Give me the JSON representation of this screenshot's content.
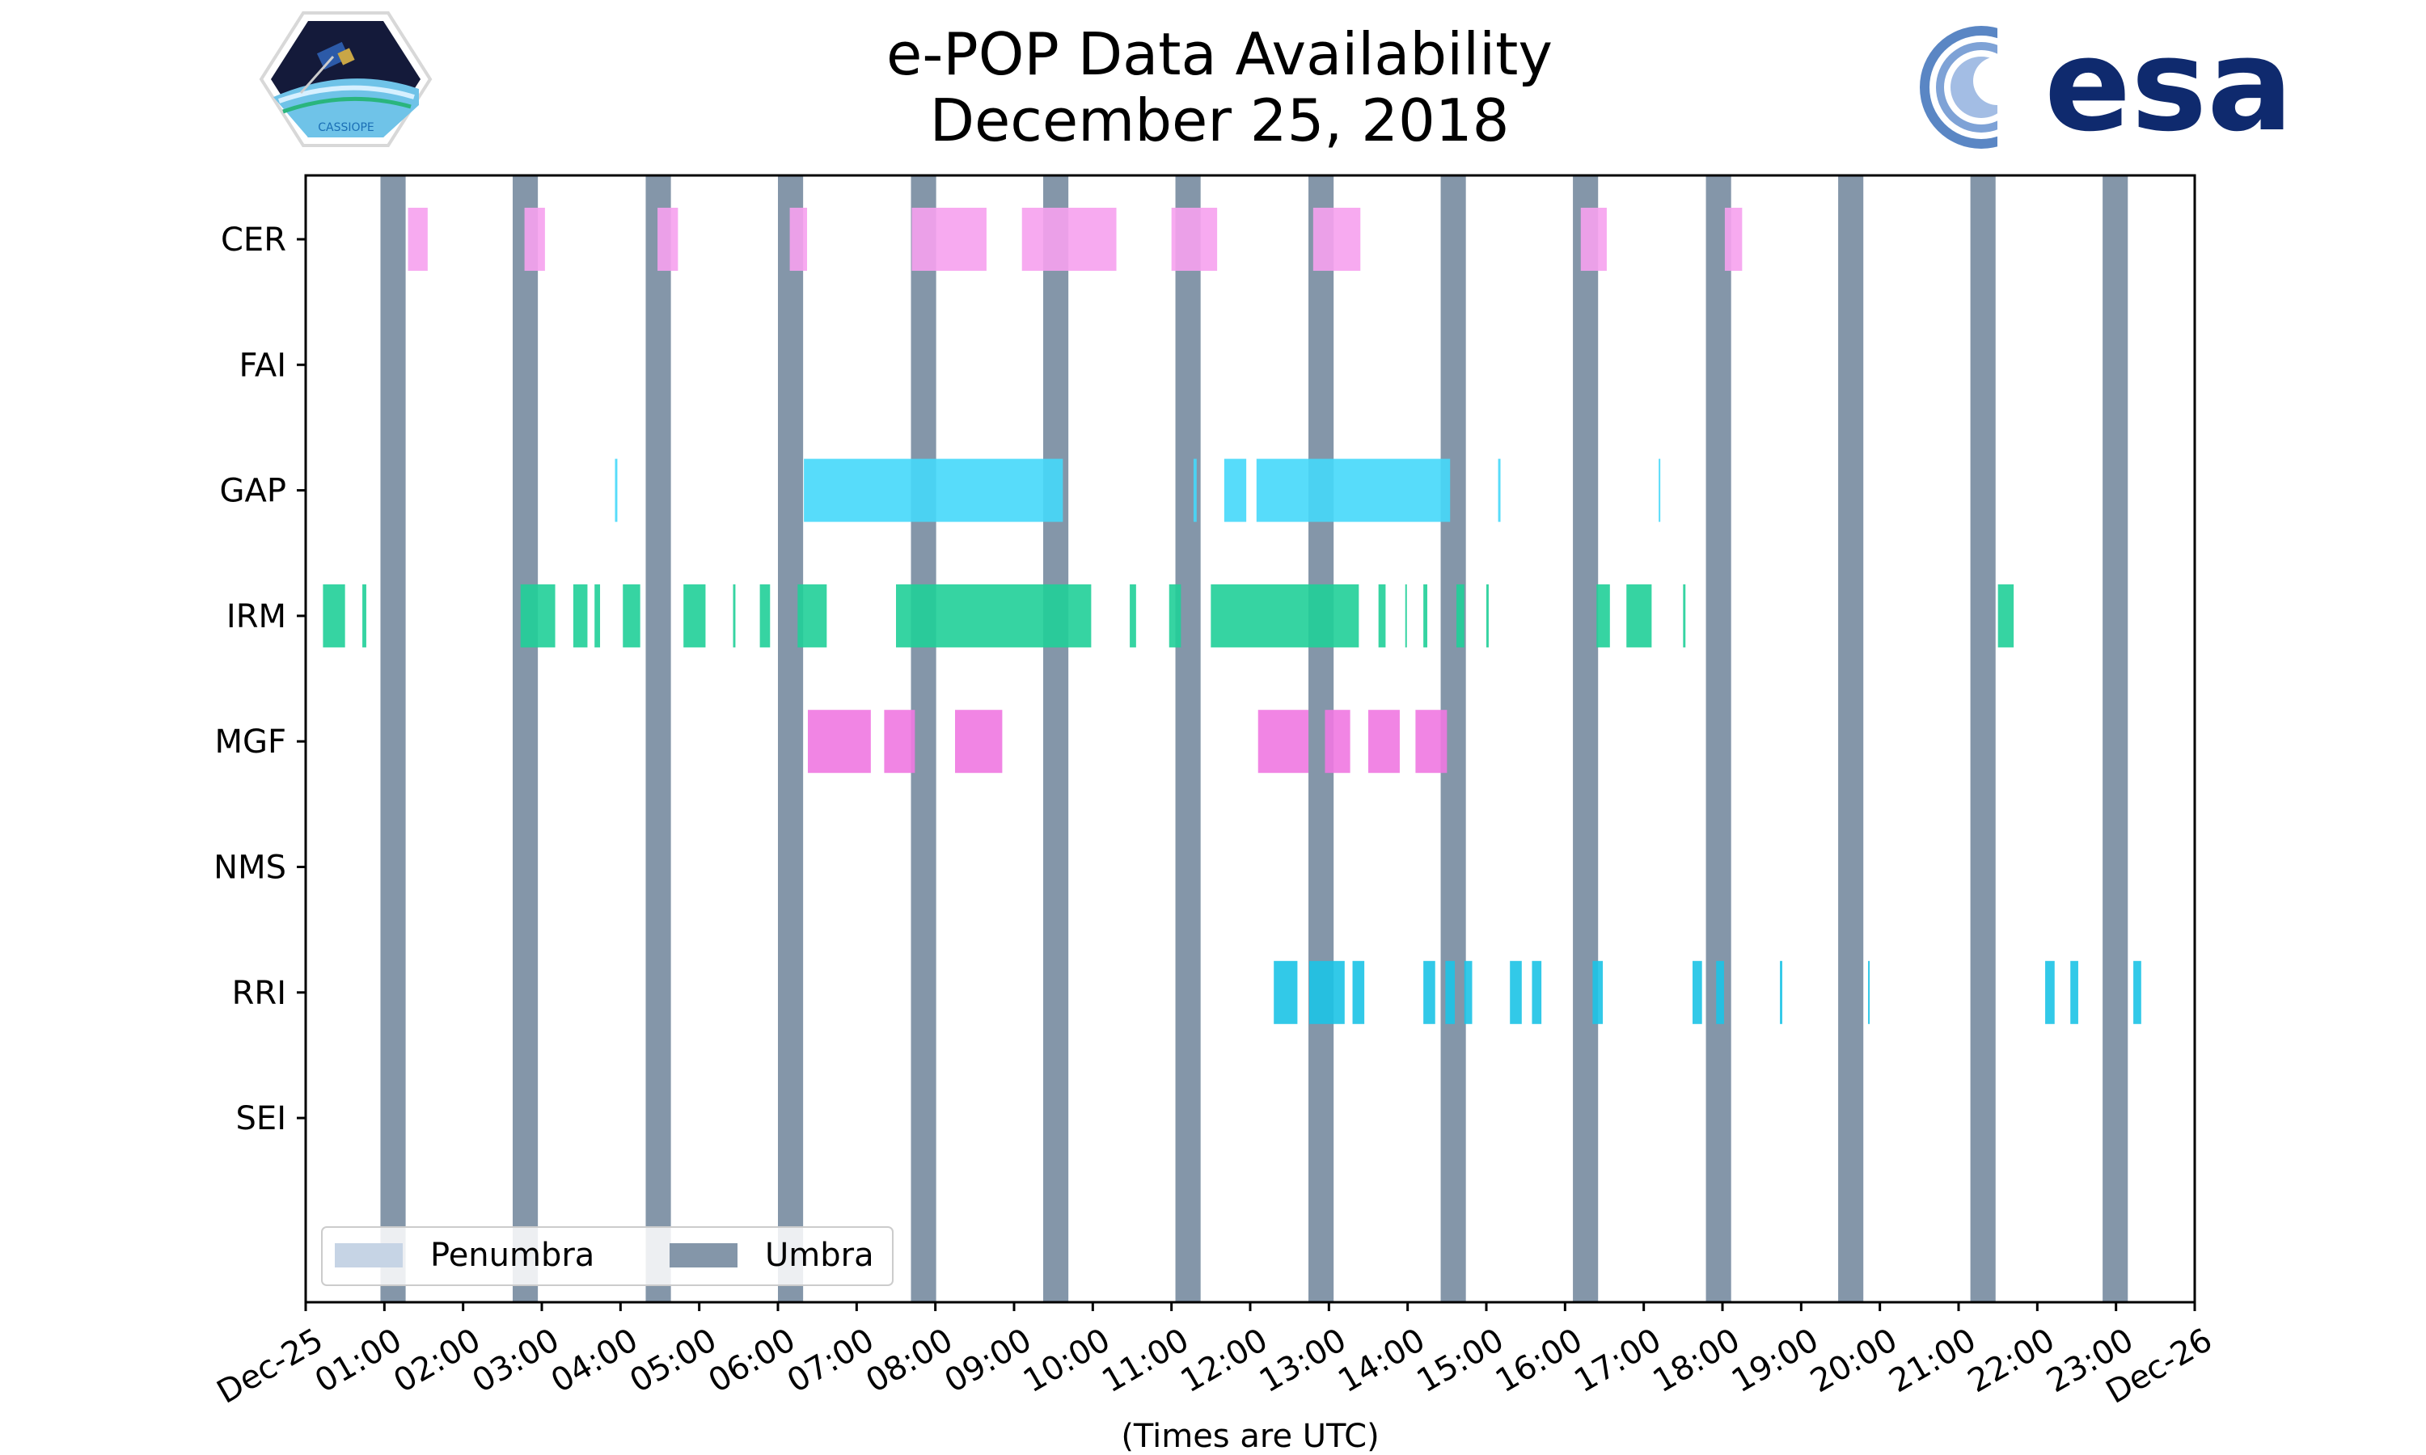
{
  "chart_data": {
    "type": "timeline",
    "title": [
      "e-POP Data Availability",
      "December 25, 2018"
    ],
    "xlabel": "(Times are UTC)",
    "xlim_hours": [
      0,
      24
    ],
    "instruments": [
      "CER",
      "FAI",
      "GAP",
      "IRM",
      "MGF",
      "NMS",
      "RRI",
      "SEI"
    ],
    "xtick_hours": [
      0,
      1,
      2,
      3,
      4,
      5,
      6,
      7,
      8,
      9,
      10,
      11,
      12,
      13,
      14,
      15,
      16,
      17,
      18,
      19,
      20,
      21,
      22,
      23,
      24
    ],
    "xtick_labels": [
      "Dec-25",
      "01:00",
      "02:00",
      "03:00",
      "04:00",
      "05:00",
      "06:00",
      "07:00",
      "08:00",
      "09:00",
      "10:00",
      "11:00",
      "12:00",
      "13:00",
      "14:00",
      "15:00",
      "16:00",
      "17:00",
      "18:00",
      "19:00",
      "20:00",
      "21:00",
      "22:00",
      "23:00",
      "Dec-26"
    ],
    "legend": [
      {
        "label": "Penumbra",
        "color": "#c6d4e5"
      },
      {
        "label": "Umbra",
        "color": "#8496a9"
      }
    ],
    "legend_position": "lower-left",
    "umbra_hours": [
      [
        0.95,
        1.27
      ],
      [
        2.63,
        2.95
      ],
      [
        4.32,
        4.64
      ],
      [
        6.0,
        6.32
      ],
      [
        7.69,
        8.01
      ],
      [
        9.37,
        9.69
      ],
      [
        11.05,
        11.37
      ],
      [
        12.74,
        13.06
      ],
      [
        14.42,
        14.74
      ],
      [
        16.1,
        16.42
      ],
      [
        17.79,
        18.11
      ],
      [
        19.47,
        19.79
      ],
      [
        21.15,
        21.47
      ],
      [
        22.83,
        23.15
      ]
    ],
    "series": [
      {
        "name": "CER",
        "color": "#f6a1ee",
        "intervals": [
          [
            1.3,
            1.55
          ],
          [
            2.78,
            3.04
          ],
          [
            4.47,
            4.73
          ],
          [
            6.15,
            6.37
          ],
          [
            7.7,
            8.65
          ],
          [
            9.1,
            10.3
          ],
          [
            11.0,
            11.58
          ],
          [
            12.8,
            13.4
          ],
          [
            16.2,
            16.53
          ],
          [
            18.03,
            18.25
          ]
        ]
      },
      {
        "name": "FAI",
        "color": "#ffb000",
        "intervals": []
      },
      {
        "name": "GAP",
        "color": "#45d8f9",
        "intervals": [
          [
            3.93,
            3.96
          ],
          [
            6.33,
            9.62
          ],
          [
            11.28,
            11.32
          ],
          [
            11.67,
            11.95
          ],
          [
            12.08,
            14.54
          ],
          [
            15.15,
            15.18
          ],
          [
            17.19,
            17.21
          ]
        ]
      },
      {
        "name": "IRM",
        "color": "#20cf98",
        "intervals": [
          [
            0.22,
            0.5
          ],
          [
            0.72,
            0.77
          ],
          [
            2.73,
            3.17
          ],
          [
            3.4,
            3.58
          ],
          [
            3.67,
            3.74
          ],
          [
            4.03,
            4.25
          ],
          [
            4.8,
            5.08
          ],
          [
            5.43,
            5.46
          ],
          [
            5.77,
            5.9
          ],
          [
            6.25,
            6.62
          ],
          [
            7.5,
            9.98
          ],
          [
            10.47,
            10.55
          ],
          [
            10.97,
            11.12
          ],
          [
            11.5,
            13.38
          ],
          [
            13.63,
            13.72
          ],
          [
            13.97,
            13.99
          ],
          [
            14.2,
            14.25
          ],
          [
            14.62,
            14.72
          ],
          [
            15.0,
            15.03
          ],
          [
            16.4,
            16.57
          ],
          [
            16.78,
            17.1
          ],
          [
            17.5,
            17.53
          ],
          [
            21.5,
            21.7
          ]
        ]
      },
      {
        "name": "MGF",
        "color": "#f078e1",
        "intervals": [
          [
            6.38,
            7.18
          ],
          [
            7.35,
            7.74
          ],
          [
            8.25,
            8.85
          ],
          [
            12.1,
            12.74
          ],
          [
            12.95,
            13.27
          ],
          [
            13.5,
            13.9
          ],
          [
            14.1,
            14.5
          ]
        ]
      },
      {
        "name": "NMS",
        "color": "#9acd32",
        "intervals": []
      },
      {
        "name": "RRI",
        "color": "#1cc3e6",
        "intervals": [
          [
            12.3,
            12.6
          ],
          [
            12.75,
            13.2
          ],
          [
            13.3,
            13.45
          ],
          [
            14.2,
            14.35
          ],
          [
            14.48,
            14.6
          ],
          [
            14.72,
            14.82
          ],
          [
            15.3,
            15.45
          ],
          [
            15.58,
            15.7
          ],
          [
            16.35,
            16.48
          ],
          [
            17.62,
            17.74
          ],
          [
            17.92,
            18.02
          ],
          [
            18.73,
            18.76
          ],
          [
            19.85,
            19.87
          ],
          [
            22.1,
            22.22
          ],
          [
            22.42,
            22.52
          ],
          [
            23.22,
            23.32
          ]
        ]
      },
      {
        "name": "SEI",
        "color": "#b39ddb",
        "intervals": []
      }
    ]
  },
  "logos": {
    "cassiope": {
      "alt": "CASSIOPE logo",
      "text": "CASSIOPE"
    },
    "esa": {
      "alt": "ESA logo",
      "text": "esa"
    }
  }
}
